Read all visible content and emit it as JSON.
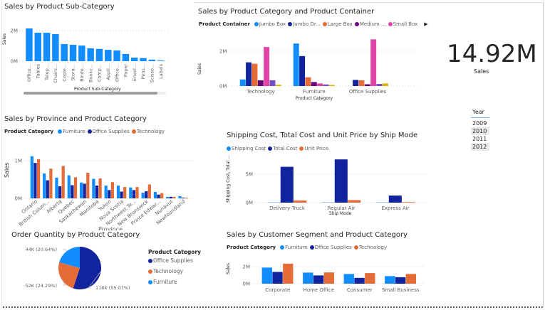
{
  "kpi": {
    "value": "14.92M",
    "label": "Sales"
  },
  "slicer": {
    "title": "Year",
    "options": [
      {
        "label": "2009",
        "selected": false
      },
      {
        "label": "2010",
        "selected": true
      },
      {
        "label": "2011",
        "selected": false
      },
      {
        "label": "2012",
        "selected": true
      }
    ]
  },
  "colors": {
    "blue": "#118DFF",
    "navy": "#12239E",
    "orange": "#E66C37",
    "purple": "#6B007B",
    "pink": "#E044A7",
    "violet": "#744EC2",
    "gold": "#D9B300"
  },
  "chart_data": [
    {
      "id": "subcategory",
      "type": "bar",
      "title": "Sales by Product Sub-Category",
      "xlabel": "Product Sub-Category",
      "ylabel": "Sales",
      "yticks": [
        {
          "v": 0,
          "label": "0M"
        },
        {
          "v": 2,
          "label": "2M"
        }
      ],
      "categories": [
        "Office...",
        "Tables",
        "Telep...",
        "Chairs...",
        "Copie...",
        "Stora...",
        "Binde...",
        "Bookc...",
        "Comp...",
        "Appli...",
        "Office...",
        "Paper",
        "Envel...",
        "Pens...",
        "Scisso...",
        "Labels"
      ],
      "series": [
        {
          "color": "#118DFF",
          "values": [
            2.14,
            1.86,
            1.86,
            1.77,
            1.12,
            1.07,
            1.02,
            0.84,
            0.8,
            0.74,
            0.7,
            0.47,
            0.23,
            0.2,
            0.1,
            0.04
          ]
        }
      ],
      "unit": "M"
    },
    {
      "id": "container",
      "type": "bar",
      "title": "Sales by Product Category and Product Container",
      "legend_title": "Product Container",
      "xlabel": "Product Category",
      "ylabel": "Sales",
      "yticks": [
        {
          "v": 0,
          "label": "0M"
        },
        {
          "v": 2,
          "label": "2M"
        }
      ],
      "categories": [
        "Technology",
        "Furniture",
        "Office Supplies"
      ],
      "series": [
        {
          "name": "Jumbo Box",
          "color": "#118DFF",
          "values": [
            0.38,
            2.44,
            0
          ]
        },
        {
          "name": "Jumbo Dr...",
          "color": "#12239E",
          "values": [
            1.36,
            1.72,
            0.35
          ]
        },
        {
          "name": "Large Box",
          "color": "#E66C37",
          "values": [
            1.28,
            0.5,
            0.33
          ]
        },
        {
          "name": "Medium ...",
          "color": "#6B007B",
          "values": [
            0.33,
            0.23,
            0.1
          ]
        },
        {
          "name": "Small Box",
          "color": "#E044A7",
          "values": [
            2.24,
            0.15,
            2.68
          ]
        },
        {
          "color": "#744EC2",
          "values": [
            0.33,
            0.09,
            0.12
          ]
        },
        {
          "color": "#D9B300",
          "values": [
            0.07,
            0.06,
            0.15
          ]
        }
      ]
    },
    {
      "id": "province",
      "type": "bar",
      "title": "Sales by Province and Product Category",
      "legend_title": "Product Category",
      "xlabel": "Province",
      "ylabel": "Sales",
      "yticks": [
        {
          "v": 0,
          "label": "0M"
        },
        {
          "v": 1,
          "label": "1M"
        }
      ],
      "categories": [
        "Ontario",
        "British Colum...",
        "Alberta",
        "Quebec",
        "Saskachewan",
        "Manitoba",
        "Yukon",
        "Nova Scotia",
        "Northwest Te...",
        "New Brunswick",
        "Prince Edwar...",
        "Nunavut",
        "Newfoundland"
      ],
      "series": [
        {
          "name": "Furniture",
          "color": "#118DFF",
          "values": [
            1.12,
            0.66,
            0.55,
            0.61,
            0.42,
            0.52,
            0.34,
            0.34,
            0.29,
            0.15,
            0.17,
            0.04,
            0.06
          ]
        },
        {
          "name": "Office Supplies",
          "color": "#12239E",
          "values": [
            0.94,
            0.48,
            0.32,
            0.35,
            0.39,
            0.34,
            0.22,
            0.18,
            0.22,
            0.19,
            0.1,
            0.04,
            0.02
          ]
        },
        {
          "name": "Technology",
          "color": "#E66C37",
          "values": [
            1.04,
            0.79,
            0.86,
            0.56,
            0.68,
            0.53,
            0.43,
            0.3,
            0.3,
            0.37,
            0.14,
            0.04,
            0.02
          ]
        }
      ]
    },
    {
      "id": "shipmode",
      "type": "bar",
      "title": "Shipping Cost, Total Cost and Unit Price by Ship Mode",
      "xlabel": "Ship Mode",
      "ylabel": "Shipping Cost, Total ...",
      "yticks": [
        {
          "v": 0,
          "label": "0M"
        },
        {
          "v": 5,
          "label": "5M"
        }
      ],
      "categories": [
        "Delivery Truck",
        "Regular Air",
        "Express Air"
      ],
      "series": [
        {
          "name": "Shipping Cost",
          "color": "#118DFF",
          "values": [
            0.05,
            0.05,
            0.05
          ]
        },
        {
          "name": "Total Cost",
          "color": "#12239E",
          "values": [
            6.3,
            7.6,
            1.25
          ]
        },
        {
          "name": "Unit Price",
          "color": "#E66C37",
          "values": [
            0.38,
            0.45,
            0.1
          ]
        }
      ]
    },
    {
      "id": "orderqty",
      "type": "pie",
      "title": "Order Quantity by Product Category",
      "legend_title": "Product Category",
      "slices": [
        {
          "name": "Office Supplies",
          "value": 118,
          "pct": 55.07,
          "label": "118K (55.07%)",
          "color": "#12239E"
        },
        {
          "name": "Technology",
          "value": 52,
          "pct": 24.29,
          "label": "52K (24.29%)",
          "color": "#E66C37"
        },
        {
          "name": "Furniture",
          "value": 44,
          "pct": 20.64,
          "label": "44K (20.64%)",
          "color": "#118DFF"
        }
      ]
    },
    {
      "id": "segment",
      "type": "bar",
      "title": "Sales by Customer Segment and Product Category",
      "legend_title": "Product Category",
      "xlabel": "",
      "ylabel": "Sales",
      "yticks": [
        {
          "v": 0,
          "label": "0M"
        },
        {
          "v": 2,
          "label": "2M"
        }
      ],
      "categories": [
        "Corporate",
        "Home Office",
        "Consumer",
        "Small Business"
      ],
      "series": [
        {
          "name": "Furniture",
          "color": "#118DFF",
          "values": [
            1.89,
            1.3,
            1.14,
            0.89
          ]
        },
        {
          "name": "Office Supplies",
          "color": "#12239E",
          "values": [
            1.38,
            0.97,
            0.68,
            0.76
          ]
        },
        {
          "name": "Technology",
          "color": "#E66C37",
          "values": [
            2.35,
            1.32,
            1.24,
            1.14
          ]
        }
      ]
    }
  ]
}
